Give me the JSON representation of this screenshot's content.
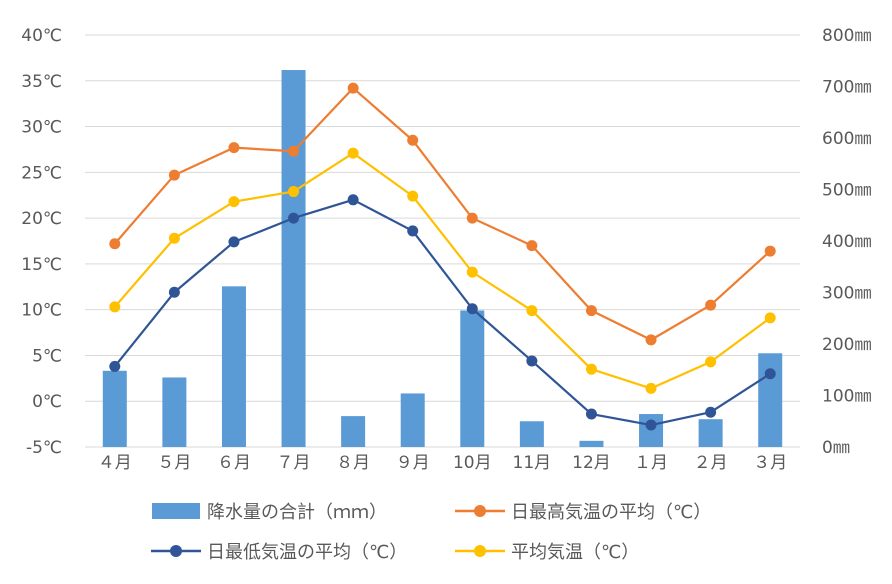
{
  "chart_data": {
    "type": "bar+line",
    "categories": [
      "４月",
      "５月",
      "６月",
      "７月",
      "８月",
      "９月",
      "10月",
      "11月",
      "12月",
      "１月",
      "２月",
      "３月"
    ],
    "bar_series": {
      "name": "降水量の合計（ｍｍ）",
      "axis": "right",
      "values": [
        148,
        135,
        312,
        732,
        60,
        104,
        265,
        50,
        12,
        64,
        54,
        182
      ],
      "color": "#5B9BD5"
    },
    "line_series": [
      {
        "name": "日最高気温の平均（℃）",
        "axis": "left",
        "values": [
          17.2,
          24.7,
          27.7,
          27.3,
          34.2,
          28.5,
          20.0,
          17.0,
          9.9,
          6.7,
          10.5,
          16.4
        ],
        "color": "#ED7D31"
      },
      {
        "name": "日最低気温の平均（℃）",
        "axis": "left",
        "values": [
          3.8,
          11.9,
          17.4,
          20.0,
          22.0,
          18.6,
          10.1,
          4.4,
          -1.4,
          -2.6,
          -1.2,
          3.0
        ],
        "color": "#2F5597"
      },
      {
        "name": "平均気温（℃）",
        "axis": "left",
        "values": [
          10.3,
          17.8,
          21.8,
          22.9,
          27.1,
          22.4,
          14.1,
          9.9,
          3.5,
          1.4,
          4.3,
          9.1
        ],
        "color": "#FFC000"
      }
    ],
    "left_axis": {
      "ylim": [
        -5,
        40
      ],
      "ticks": [
        -5,
        0,
        5,
        10,
        15,
        20,
        25,
        30,
        35,
        40
      ],
      "tick_labels": [
        "-5℃",
        "0℃",
        "5℃",
        "10℃",
        "15℃",
        "20℃",
        "25℃",
        "30℃",
        "35℃",
        "40℃"
      ]
    },
    "right_axis": {
      "ylim": [
        0,
        800
      ],
      "ticks": [
        0,
        100,
        200,
        300,
        400,
        500,
        600,
        700,
        800
      ],
      "tick_labels": [
        "0㎜",
        "100㎜",
        "200㎜",
        "300㎜",
        "400㎜",
        "500㎜",
        "600㎜",
        "700㎜",
        "800㎜"
      ]
    },
    "grid": true,
    "legend_position": "bottom"
  }
}
